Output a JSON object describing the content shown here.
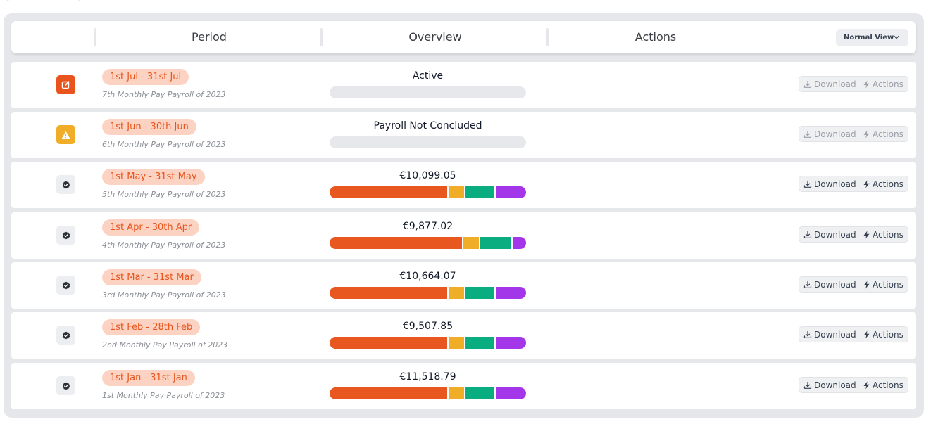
{
  "header": {
    "columns": {
      "period": "Period",
      "overview": "Overview",
      "actions": "Actions"
    },
    "view_select": {
      "value": "Normal View"
    }
  },
  "colors": {
    "gross": "#e8571f",
    "tax": "#f0ad27",
    "pension": "#0aad7f",
    "other": "#a336e8",
    "empty": "#e6e8eb"
  },
  "payrolls": [
    {
      "period": "1st Jul - 31st Jul",
      "subtitle": "7th Monthly Pay Payroll of 2023",
      "status": "active",
      "status_icon": "edit-icon",
      "overview_label": "Active",
      "breakdown": [],
      "download_label": "Download",
      "actions_label": "Actions",
      "enabled": false
    },
    {
      "period": "1st Jun - 30th Jun",
      "subtitle": "6th Monthly Pay Payroll of 2023",
      "status": "warning",
      "status_icon": "warning-icon",
      "overview_label": "Payroll Not Concluded",
      "breakdown": [],
      "download_label": "Download",
      "actions_label": "Actions",
      "enabled": false
    },
    {
      "period": "1st May - 31st May",
      "subtitle": "5th Monthly Pay Payroll of 2023",
      "status": "concluded",
      "status_icon": "verified-check-icon",
      "overview_label": "€10,099.05",
      "breakdown": [
        0.6,
        0.085,
        0.155,
        0.16
      ],
      "download_label": "Download",
      "actions_label": "Actions",
      "enabled": true
    },
    {
      "period": "1st Apr - 30th Apr",
      "subtitle": "4th Monthly Pay Payroll of 2023",
      "status": "concluded",
      "status_icon": "verified-check-icon",
      "overview_label": "€9,877.02",
      "breakdown": [
        0.675,
        0.085,
        0.165,
        0.075
      ],
      "download_label": "Download",
      "actions_label": "Actions",
      "enabled": true
    },
    {
      "period": "1st Mar - 31st Mar",
      "subtitle": "3rd Monthly Pay Payroll of 2023",
      "status": "concluded",
      "status_icon": "verified-check-icon",
      "overview_label": "€10,664.07",
      "breakdown": [
        0.6,
        0.085,
        0.155,
        0.16
      ],
      "download_label": "Download",
      "actions_label": "Actions",
      "enabled": true
    },
    {
      "period": "1st Feb - 28th Feb",
      "subtitle": "2nd Monthly Pay Payroll of 2023",
      "status": "concluded",
      "status_icon": "verified-check-icon",
      "overview_label": "€9,507.85",
      "breakdown": [
        0.6,
        0.085,
        0.155,
        0.16
      ],
      "download_label": "Download",
      "actions_label": "Actions",
      "enabled": true
    },
    {
      "period": "1st Jan - 31st Jan",
      "subtitle": "1st Monthly Pay Payroll of 2023",
      "status": "concluded",
      "status_icon": "verified-check-icon",
      "overview_label": "€11,518.79",
      "breakdown": [
        0.6,
        0.085,
        0.155,
        0.16
      ],
      "download_label": "Download",
      "actions_label": "Actions",
      "enabled": true
    }
  ]
}
